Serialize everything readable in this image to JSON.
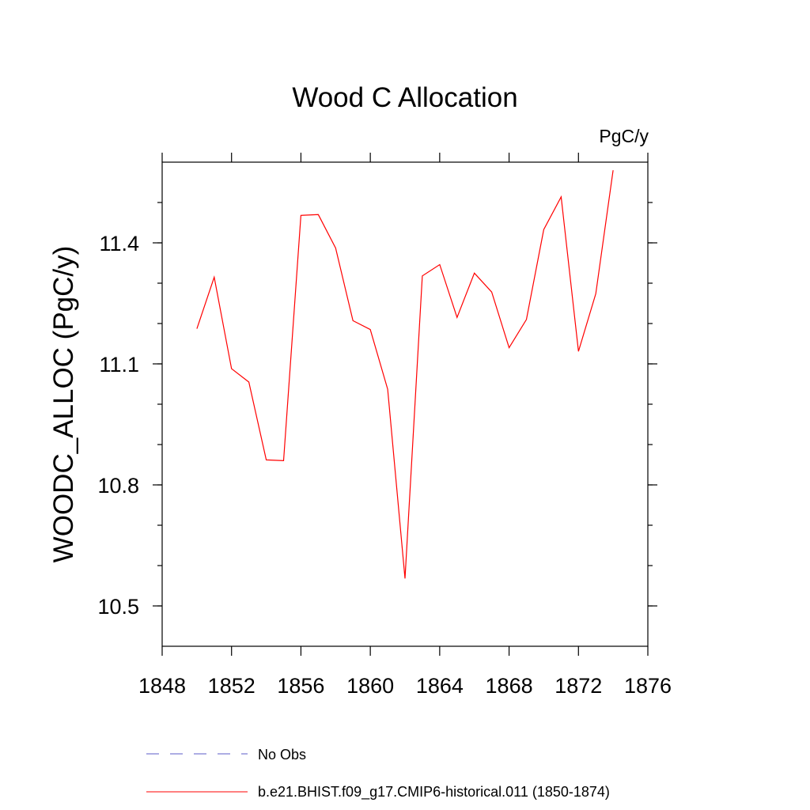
{
  "chart_data": {
    "type": "line",
    "title": "Wood C Allocation",
    "units_label": "PgC/y",
    "xlabel": "",
    "ylabel": "WOODC_ALLOC  (PgC/y)",
    "xlim": [
      1848,
      1876
    ],
    "ylim": [
      10.4,
      11.6
    ],
    "x_ticks": [
      1848,
      1852,
      1856,
      1860,
      1864,
      1868,
      1872,
      1876
    ],
    "x_tick_labels": [
      "1848",
      "1852",
      "1856",
      "1860",
      "1864",
      "1868",
      "1872",
      "1876"
    ],
    "y_ticks": [
      10.5,
      10.8,
      11.1,
      11.4
    ],
    "y_tick_labels": [
      "10.5",
      "10.8",
      "11.1",
      "11.4"
    ],
    "grid": false,
    "legend_position": "bottom",
    "series": [
      {
        "name": "b.e21.BHIST.f09_g17.CMIP6-historical.011 (1850-1874)",
        "color": "#ff0000",
        "style": "solid",
        "x": [
          1850,
          1851,
          1852,
          1853,
          1854,
          1855,
          1856,
          1857,
          1858,
          1859,
          1860,
          1861,
          1862,
          1863,
          1864,
          1865,
          1866,
          1867,
          1868,
          1869,
          1870,
          1871,
          1872,
          1873,
          1874
        ],
        "y": [
          11.187,
          11.315,
          11.088,
          11.055,
          10.862,
          10.86,
          11.468,
          11.47,
          11.387,
          11.207,
          11.185,
          11.037,
          10.568,
          11.318,
          11.346,
          11.215,
          11.325,
          11.278,
          11.14,
          11.21,
          11.433,
          11.514,
          11.131,
          11.274,
          11.58
        ]
      }
    ],
    "legend": [
      {
        "label": "No Obs",
        "color": "#5b5bc8",
        "style": "dashed"
      },
      {
        "label": "b.e21.BHIST.f09_g17.CMIP6-historical.011 (1850-1874)",
        "color": "#ff0000",
        "style": "solid"
      }
    ]
  }
}
